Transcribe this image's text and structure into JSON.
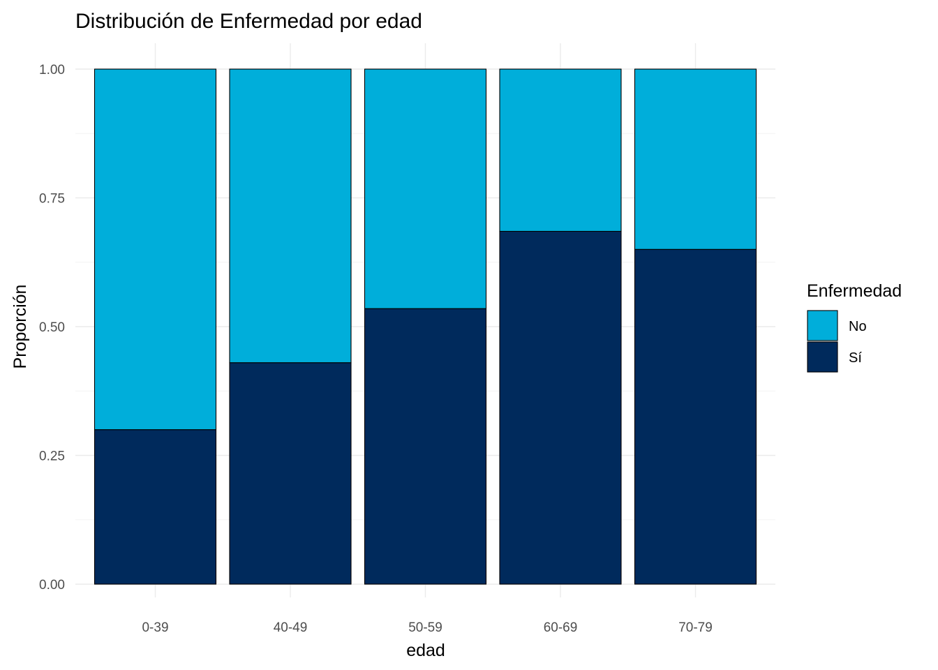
{
  "chart_data": {
    "type": "bar",
    "stacked": true,
    "title": "Distribución de Enfermedad por edad",
    "xlabel": "edad",
    "ylabel": "Proporción",
    "categories": [
      "0-39",
      "40-49",
      "50-59",
      "60-69",
      "70-79"
    ],
    "series": [
      {
        "name": "Sí",
        "color": "#002A5C",
        "values": [
          0.3,
          0.43,
          0.535,
          0.685,
          0.65
        ]
      },
      {
        "name": "No",
        "color": "#00AEDA",
        "values": [
          0.7,
          0.57,
          0.465,
          0.315,
          0.35
        ]
      }
    ],
    "ylim": [
      0,
      1
    ],
    "yticks": [
      "0.00",
      "0.25",
      "0.50",
      "0.75",
      "1.00"
    ],
    "ytick_values": [
      0,
      0.25,
      0.5,
      0.75,
      1.0
    ],
    "grid": true,
    "legend": {
      "title": "Enfermedad",
      "position": "right",
      "entries": [
        {
          "label": "No",
          "color": "#00AEDA"
        },
        {
          "label": "Sí",
          "color": "#002A5C"
        }
      ]
    }
  }
}
